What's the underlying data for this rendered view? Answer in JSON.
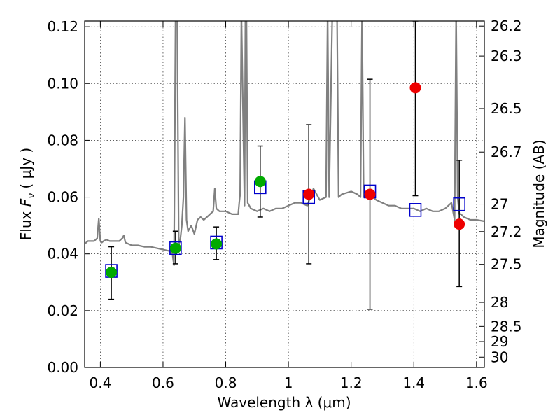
{
  "chart_data": {
    "type": "scatter",
    "xlabel": "Wavelength  λ (μm)",
    "ylabel": "Flux  F_ν  ( μJy )",
    "ylabel_parts": {
      "pre": "Flux  ",
      "var": "F",
      "sub": "ν",
      "post": "  ( μJy )"
    },
    "y2label": "Magnitude (AB)",
    "xlim": [
      0.35,
      1.625
    ],
    "ylim": [
      0.0,
      0.122
    ],
    "grid": true,
    "x_ticks": [
      0.4,
      0.6,
      0.8,
      1.0,
      1.2,
      1.4,
      1.6
    ],
    "x_tick_labels": [
      "0.4",
      "0.6",
      "0.8",
      "1",
      "1.2",
      "1.4",
      "1.6"
    ],
    "y_ticks": [
      0.0,
      0.02,
      0.04,
      0.06,
      0.08,
      0.1,
      0.12
    ],
    "y_tick_labels": [
      "0.00",
      "0.02",
      "0.04",
      "0.06",
      "0.08",
      "0.10",
      "0.12"
    ],
    "y2_ticks": [
      {
        "mag": 26.2,
        "label": "26.2"
      },
      {
        "mag": 26.3,
        "label": "26.3"
      },
      {
        "mag": 26.5,
        "label": "26.5"
      },
      {
        "mag": 26.7,
        "label": "26.7"
      },
      {
        "mag": 27.0,
        "label": "27"
      },
      {
        "mag": 27.2,
        "label": "27.2"
      },
      {
        "mag": 27.5,
        "label": "27.5"
      },
      {
        "mag": 28.0,
        "label": "28"
      },
      {
        "mag": 28.5,
        "label": "28.5"
      },
      {
        "mag": 29.0,
        "label": "29"
      },
      {
        "mag": 30.0,
        "label": "30"
      }
    ],
    "series": [
      {
        "kind": "model-spectrum",
        "color": "#808080",
        "x": [
          0.35,
          0.36,
          0.38,
          0.39,
          0.395,
          0.4,
          0.405,
          0.41,
          0.42,
          0.43,
          0.44,
          0.46,
          0.47,
          0.475,
          0.48,
          0.49,
          0.5,
          0.52,
          0.54,
          0.56,
          0.58,
          0.6,
          0.62,
          0.63,
          0.635,
          0.64,
          0.645,
          0.65,
          0.655,
          0.66,
          0.665,
          0.67,
          0.675,
          0.68,
          0.69,
          0.7,
          0.71,
          0.72,
          0.73,
          0.74,
          0.75,
          0.76,
          0.765,
          0.77,
          0.78,
          0.8,
          0.82,
          0.84,
          0.843,
          0.846,
          0.85,
          0.86,
          0.863,
          0.866,
          0.87,
          0.88,
          0.9,
          0.92,
          0.94,
          0.96,
          0.98,
          1.0,
          1.02,
          1.04,
          1.06,
          1.08,
          1.1,
          1.12,
          1.125,
          1.13,
          1.14,
          1.145,
          1.15,
          1.155,
          1.16,
          1.17,
          1.2,
          1.22,
          1.23,
          1.235,
          1.24,
          1.25,
          1.26,
          1.28,
          1.3,
          1.32,
          1.34,
          1.36,
          1.38,
          1.4,
          1.42,
          1.44,
          1.46,
          1.48,
          1.5,
          1.52,
          1.53,
          1.535,
          1.54,
          1.545,
          1.55,
          1.56,
          1.58,
          1.6,
          1.625
        ],
        "y": [
          0.0435,
          0.0445,
          0.0445,
          0.0455,
          0.0525,
          0.0445,
          0.044,
          0.0445,
          0.045,
          0.0445,
          0.0445,
          0.0445,
          0.0455,
          0.0465,
          0.044,
          0.0435,
          0.043,
          0.043,
          0.0425,
          0.0425,
          0.042,
          0.0415,
          0.041,
          0.04,
          0.036,
          0.125,
          0.125,
          0.043,
          0.045,
          0.05,
          0.06,
          0.088,
          0.052,
          0.048,
          0.05,
          0.047,
          0.052,
          0.053,
          0.052,
          0.053,
          0.054,
          0.055,
          0.063,
          0.056,
          0.055,
          0.055,
          0.054,
          0.054,
          0.058,
          0.061,
          0.125,
          0.057,
          0.125,
          0.125,
          0.058,
          0.056,
          0.055,
          0.056,
          0.055,
          0.056,
          0.056,
          0.057,
          0.058,
          0.058,
          0.057,
          0.063,
          0.059,
          0.06,
          0.125,
          0.06,
          0.125,
          0.125,
          0.125,
          0.125,
          0.06,
          0.061,
          0.062,
          0.061,
          0.06,
          0.125,
          0.06,
          0.061,
          0.061,
          0.059,
          0.058,
          0.057,
          0.057,
          0.056,
          0.056,
          0.056,
          0.055,
          0.056,
          0.055,
          0.055,
          0.056,
          0.058,
          0.052,
          0.125,
          0.06,
          0.054,
          0.054,
          0.053,
          0.052,
          0.052,
          0.0515
        ]
      },
      {
        "kind": "model-photometry",
        "marker": "open-square",
        "color": "#0000cc",
        "x": [
          0.435,
          0.64,
          0.77,
          0.91,
          1.065,
          1.26,
          1.405,
          1.545
        ],
        "y": [
          0.034,
          0.042,
          0.044,
          0.0635,
          0.06,
          0.062,
          0.0555,
          0.0575
        ]
      },
      {
        "kind": "observed-detections",
        "marker": "filled-circle",
        "color": "#00aa00",
        "x": [
          0.435,
          0.64,
          0.77,
          0.91
        ],
        "y": [
          0.0335,
          0.042,
          0.0435,
          0.0655
        ],
        "err_low": [
          0.0095,
          0.0055,
          0.0055,
          0.0125
        ],
        "err_high": [
          0.009,
          0.006,
          0.006,
          0.0125
        ]
      },
      {
        "kind": "observed-marginal",
        "marker": "filled-circle",
        "color": "#ee0000",
        "x": [
          1.065,
          1.26,
          1.405,
          1.545
        ],
        "y": [
          0.061,
          0.061,
          0.0985,
          0.0505
        ],
        "err_low": [
          0.0245,
          0.0405,
          0.038,
          0.022
        ],
        "err_high": [
          0.0245,
          0.0405,
          0.0235,
          0.0225
        ]
      }
    ]
  }
}
